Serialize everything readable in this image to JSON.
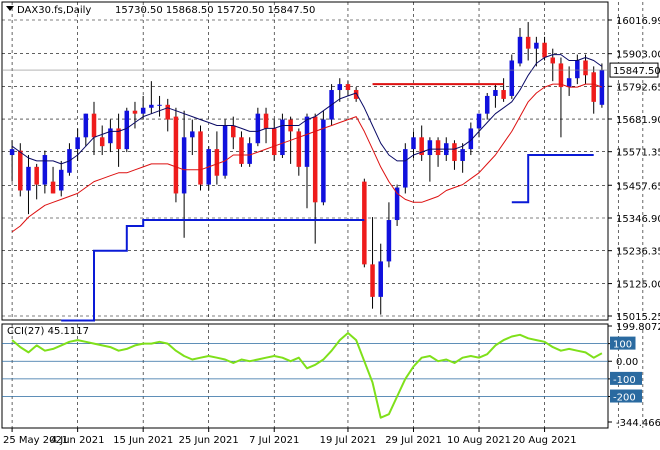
{
  "header": {
    "symbol": "DAX30.fs,Daily",
    "ohlc": "15730.50 15868.50 15720.50 15847.50"
  },
  "indicator": {
    "label": "CCI(27) 45.1117"
  },
  "colors": {
    "bull": "#1010dd",
    "bear": "#ee1c1c",
    "wick": "#000000",
    "ma_fast": "#0a0a66",
    "ma_slow": "#dd1111",
    "support": "#0a1ad6",
    "resistance": "#dd1111",
    "cci": "#7fe01a",
    "cci_level": "#2a6aa0",
    "price_tag_bg": "#ffffff"
  },
  "chart_data": [
    {
      "type": "candlestick",
      "title": "DAX30.fs,Daily",
      "x_tick_labels": [
        "25 May 2021",
        "4 Jun 2021",
        "15 Jun 2021",
        "25 Jun 2021",
        "7 Jul 2021",
        "19 Jul 2021",
        "29 Jul 2021",
        "10 Aug 2021",
        "20 Aug 2021"
      ],
      "x_tick_index": [
        0,
        8,
        16,
        24,
        32,
        41,
        49,
        57,
        65
      ],
      "y_tick_labels": [
        "16016.99",
        "15903.00",
        "15792.65",
        "15681.90",
        "15571.35",
        "15457.65",
        "15346.90",
        "15236.35",
        "15125.00",
        "15015.25"
      ],
      "y_range": [
        15015.25,
        16016.99
      ],
      "current_price": "15847.50",
      "candles": [
        {
          "o": 15560,
          "h": 15610,
          "l": 15470,
          "c": 15580
        },
        {
          "o": 15575,
          "h": 15600,
          "l": 15420,
          "c": 15440
        },
        {
          "o": 15440,
          "h": 15560,
          "l": 15360,
          "c": 15520
        },
        {
          "o": 15520,
          "h": 15530,
          "l": 15410,
          "c": 15460
        },
        {
          "o": 15460,
          "h": 15575,
          "l": 15430,
          "c": 15560
        },
        {
          "o": 15470,
          "h": 15520,
          "l": 15430,
          "c": 15430
        },
        {
          "o": 15440,
          "h": 15540,
          "l": 15420,
          "c": 15510
        },
        {
          "o": 15500,
          "h": 15600,
          "l": 15490,
          "c": 15580
        },
        {
          "o": 15580,
          "h": 15650,
          "l": 15540,
          "c": 15620
        },
        {
          "o": 15620,
          "h": 15700,
          "l": 15590,
          "c": 15700
        },
        {
          "o": 15700,
          "h": 15740,
          "l": 15560,
          "c": 15620
        },
        {
          "o": 15620,
          "h": 15660,
          "l": 15560,
          "c": 15590
        },
        {
          "o": 15600,
          "h": 15680,
          "l": 15570,
          "c": 15650
        },
        {
          "o": 15650,
          "h": 15700,
          "l": 15520,
          "c": 15580
        },
        {
          "o": 15580,
          "h": 15720,
          "l": 15570,
          "c": 15710
        },
        {
          "o": 15710,
          "h": 15740,
          "l": 15650,
          "c": 15700
        },
        {
          "o": 15700,
          "h": 15760,
          "l": 15680,
          "c": 15720
        },
        {
          "o": 15720,
          "h": 15810,
          "l": 15700,
          "c": 15730
        },
        {
          "o": 15730,
          "h": 15760,
          "l": 15690,
          "c": 15730
        },
        {
          "o": 15730,
          "h": 15750,
          "l": 15640,
          "c": 15680
        },
        {
          "o": 15690,
          "h": 15720,
          "l": 15400,
          "c": 15430
        },
        {
          "o": 15430,
          "h": 15710,
          "l": 15280,
          "c": 15620
        },
        {
          "o": 15620,
          "h": 15680,
          "l": 15560,
          "c": 15640
        },
        {
          "o": 15640,
          "h": 15660,
          "l": 15440,
          "c": 15460
        },
        {
          "o": 15460,
          "h": 15590,
          "l": 15440,
          "c": 15580
        },
        {
          "o": 15580,
          "h": 15640,
          "l": 15460,
          "c": 15490
        },
        {
          "o": 15490,
          "h": 15680,
          "l": 15480,
          "c": 15660
        },
        {
          "o": 15660,
          "h": 15690,
          "l": 15580,
          "c": 15620
        },
        {
          "o": 15620,
          "h": 15640,
          "l": 15520,
          "c": 15530
        },
        {
          "o": 15530,
          "h": 15620,
          "l": 15520,
          "c": 15600
        },
        {
          "o": 15600,
          "h": 15720,
          "l": 15590,
          "c": 15700
        },
        {
          "o": 15700,
          "h": 15720,
          "l": 15600,
          "c": 15650
        },
        {
          "o": 15650,
          "h": 15680,
          "l": 15540,
          "c": 15560
        },
        {
          "o": 15560,
          "h": 15700,
          "l": 15550,
          "c": 15680
        },
        {
          "o": 15680,
          "h": 15690,
          "l": 15530,
          "c": 15640
        },
        {
          "o": 15640,
          "h": 15650,
          "l": 15490,
          "c": 15520
        },
        {
          "o": 15520,
          "h": 15700,
          "l": 15380,
          "c": 15690
        },
        {
          "o": 15690,
          "h": 15700,
          "l": 15260,
          "c": 15400
        },
        {
          "o": 15400,
          "h": 15710,
          "l": 15390,
          "c": 15680
        },
        {
          "o": 15680,
          "h": 15800,
          "l": 15660,
          "c": 15780
        },
        {
          "o": 15780,
          "h": 15820,
          "l": 15740,
          "c": 15800
        },
        {
          "o": 15800,
          "h": 15810,
          "l": 15760,
          "c": 15780
        },
        {
          "o": 15780,
          "h": 15790,
          "l": 15740,
          "c": 15750
        },
        {
          "o": 15470,
          "h": 15480,
          "l": 15180,
          "c": 15190
        },
        {
          "o": 15190,
          "h": 15350,
          "l": 15040,
          "c": 15080
        },
        {
          "o": 15080,
          "h": 15260,
          "l": 15020,
          "c": 15200
        },
        {
          "o": 15200,
          "h": 15400,
          "l": 15180,
          "c": 15340
        },
        {
          "o": 15340,
          "h": 15460,
          "l": 15320,
          "c": 15450
        },
        {
          "o": 15450,
          "h": 15600,
          "l": 15430,
          "c": 15580
        },
        {
          "o": 15580,
          "h": 15640,
          "l": 15550,
          "c": 15620
        },
        {
          "o": 15620,
          "h": 15660,
          "l": 15540,
          "c": 15560
        },
        {
          "o": 15560,
          "h": 15620,
          "l": 15470,
          "c": 15610
        },
        {
          "o": 15610,
          "h": 15620,
          "l": 15520,
          "c": 15560
        },
        {
          "o": 15560,
          "h": 15620,
          "l": 15540,
          "c": 15600
        },
        {
          "o": 15600,
          "h": 15610,
          "l": 15510,
          "c": 15540
        },
        {
          "o": 15540,
          "h": 15600,
          "l": 15500,
          "c": 15580
        },
        {
          "o": 15580,
          "h": 15670,
          "l": 15560,
          "c": 15650
        },
        {
          "o": 15650,
          "h": 15700,
          "l": 15620,
          "c": 15700
        },
        {
          "o": 15700,
          "h": 15770,
          "l": 15680,
          "c": 15760
        },
        {
          "o": 15760,
          "h": 15800,
          "l": 15720,
          "c": 15780
        },
        {
          "o": 15780,
          "h": 15820,
          "l": 15740,
          "c": 15750
        },
        {
          "o": 15760,
          "h": 15900,
          "l": 15750,
          "c": 15880
        },
        {
          "o": 15870,
          "h": 15990,
          "l": 15860,
          "c": 15960
        },
        {
          "o": 15960,
          "h": 16010,
          "l": 15880,
          "c": 15920
        },
        {
          "o": 15920,
          "h": 15960,
          "l": 15860,
          "c": 15940
        },
        {
          "o": 15940,
          "h": 15960,
          "l": 15880,
          "c": 15890
        },
        {
          "o": 15890,
          "h": 15920,
          "l": 15810,
          "c": 15870
        },
        {
          "o": 15870,
          "h": 15890,
          "l": 15620,
          "c": 15790
        },
        {
          "o": 15790,
          "h": 15860,
          "l": 15760,
          "c": 15820
        },
        {
          "o": 15820,
          "h": 15900,
          "l": 15800,
          "c": 15880
        },
        {
          "o": 15880,
          "h": 15900,
          "l": 15800,
          "c": 15830
        },
        {
          "o": 15840,
          "h": 15860,
          "l": 15700,
          "c": 15740
        },
        {
          "o": 15730,
          "h": 15870,
          "l": 15720,
          "c": 15848
        }
      ],
      "ma_fast": [
        15590,
        15570,
        15550,
        15540,
        15540,
        15540,
        15530,
        15540,
        15560,
        15590,
        15620,
        15630,
        15640,
        15640,
        15650,
        15670,
        15690,
        15700,
        15710,
        15720,
        15710,
        15700,
        15690,
        15680,
        15670,
        15660,
        15660,
        15660,
        15650,
        15640,
        15640,
        15650,
        15650,
        15660,
        15660,
        15660,
        15680,
        15690,
        15710,
        15730,
        15750,
        15760,
        15770,
        15720,
        15660,
        15600,
        15560,
        15540,
        15540,
        15560,
        15570,
        15580,
        15580,
        15580,
        15580,
        15590,
        15610,
        15640,
        15670,
        15700,
        15720,
        15740,
        15780,
        15830,
        15870,
        15890,
        15900,
        15900,
        15880,
        15880,
        15890,
        15880,
        15860
      ],
      "ma_slow": [
        15300,
        15320,
        15350,
        15370,
        15390,
        15400,
        15410,
        15420,
        15430,
        15450,
        15470,
        15480,
        15490,
        15500,
        15500,
        15510,
        15520,
        15530,
        15530,
        15530,
        15520,
        15510,
        15510,
        15510,
        15520,
        15530,
        15540,
        15560,
        15560,
        15560,
        15570,
        15580,
        15590,
        15600,
        15610,
        15620,
        15630,
        15640,
        15650,
        15660,
        15670,
        15680,
        15690,
        15640,
        15580,
        15520,
        15470,
        15430,
        15410,
        15400,
        15400,
        15410,
        15420,
        15440,
        15450,
        15460,
        15480,
        15500,
        15530,
        15560,
        15600,
        15640,
        15690,
        15740,
        15770,
        15790,
        15800,
        15800,
        15790,
        15790,
        15800,
        15800,
        15790
      ],
      "support_steps": [
        {
          "from": 6,
          "to": 10,
          "price": 15000
        },
        {
          "from": 10,
          "to": 14,
          "price": 15236
        },
        {
          "from": 14,
          "to": 16,
          "price": 15320
        },
        {
          "from": 16,
          "to": 43,
          "price": 15340
        }
      ],
      "support_steps_2": [
        {
          "from": 61,
          "to": 63,
          "price": 15400
        },
        {
          "from": 63,
          "to": 71,
          "price": 15560
        }
      ],
      "resistance_line": {
        "from": 44,
        "to": 60,
        "price": 15800
      }
    },
    {
      "type": "line",
      "title": "CCI(27) 45.1117",
      "y_tick_labels": [
        "199.8072",
        "100",
        "0.00",
        "-100",
        "-200",
        "-344.4667"
      ],
      "y_range": [
        -344.4667,
        199.8072
      ],
      "levels": [
        100,
        0,
        -100,
        -200
      ],
      "values": [
        120,
        80,
        50,
        90,
        60,
        70,
        90,
        110,
        120,
        110,
        100,
        90,
        80,
        60,
        70,
        90,
        100,
        100,
        110,
        100,
        60,
        30,
        10,
        20,
        30,
        20,
        10,
        -10,
        10,
        0,
        10,
        20,
        30,
        20,
        0,
        20,
        -40,
        -20,
        10,
        60,
        120,
        160,
        120,
        0,
        -120,
        -320,
        -300,
        -200,
        -100,
        -30,
        20,
        30,
        0,
        10,
        -10,
        20,
        30,
        20,
        40,
        90,
        120,
        140,
        150,
        130,
        120,
        110,
        80,
        60,
        70,
        60,
        50,
        20,
        45
      ]
    }
  ]
}
